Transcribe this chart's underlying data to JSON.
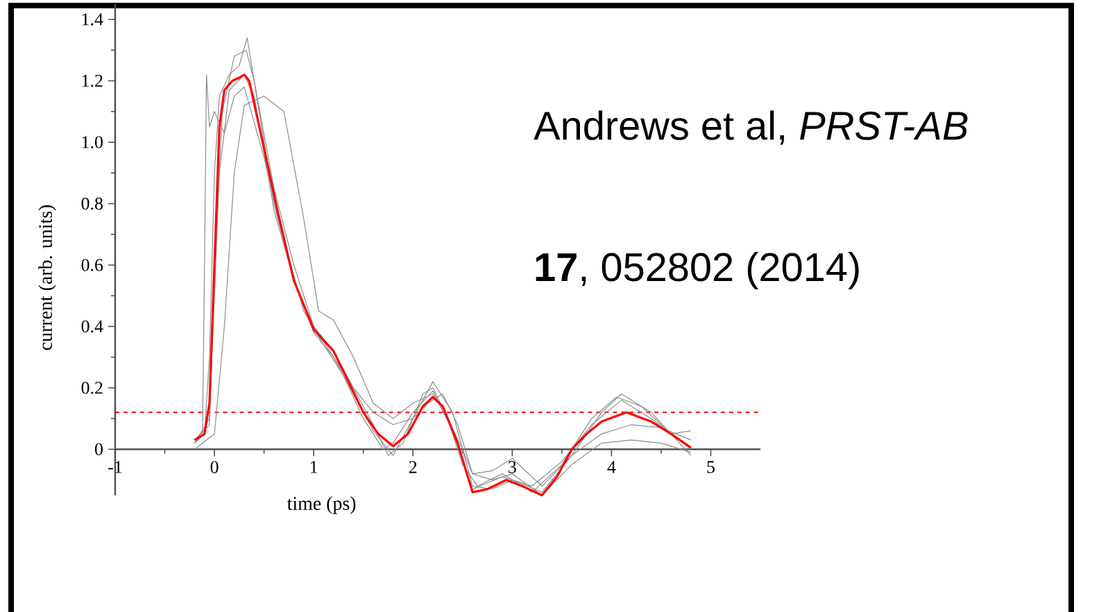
{
  "chart_data": {
    "type": "line",
    "xlabel": "time (ps)",
    "ylabel": "current (arb. units)",
    "annotations": [
      "Andrews et al, *PRST-AB*",
      "**17**, 052802 (2014)"
    ],
    "xlim": [
      -1,
      5.5
    ],
    "ylim": [
      -0.15,
      1.45
    ],
    "xticks": [
      -1,
      0,
      1,
      2,
      3,
      4,
      5
    ],
    "yticks": [
      0,
      0.2,
      0.4,
      0.6,
      0.8,
      {
        "value": 1,
        "label": "1.0"
      },
      1.2,
      1.4
    ],
    "ref_lines": [
      {
        "axis": "y",
        "value": 0.12,
        "color": "#ff0000",
        "line_style": "dashed"
      }
    ],
    "series": [
      {
        "color": "#8c8c8c",
        "x": [
          -0.2,
          0.0,
          0.1,
          0.2,
          0.3,
          0.5,
          0.7,
          0.9,
          1.05,
          1.2,
          1.4,
          1.6,
          1.8,
          2.0,
          2.2,
          2.35,
          2.5,
          2.6,
          2.8,
          3.0,
          3.3,
          3.6,
          3.9,
          4.2,
          4.5,
          4.8
        ],
        "values": [
          0.0,
          0.05,
          0.4,
          0.9,
          1.12,
          1.15,
          1.1,
          0.75,
          0.45,
          0.42,
          0.3,
          0.15,
          0.1,
          0.15,
          0.18,
          0.1,
          0.0,
          -0.08,
          -0.07,
          -0.03,
          -0.12,
          -0.02,
          0.05,
          0.08,
          0.07,
          0.03
        ]
      },
      {
        "color": "#8c8c8c",
        "x": [
          -0.2,
          -0.1,
          -0.05,
          0.0,
          0.05,
          0.15,
          0.25,
          0.33,
          0.4,
          0.6,
          0.8,
          1.0,
          1.2,
          1.4,
          1.6,
          1.8,
          2.0,
          2.2,
          2.4,
          2.6,
          2.8,
          3.0,
          3.3,
          3.6,
          3.9,
          4.1,
          4.4,
          4.8
        ],
        "values": [
          0.02,
          0.05,
          0.3,
          0.9,
          1.15,
          1.22,
          1.25,
          1.34,
          1.2,
          0.85,
          0.6,
          0.4,
          0.3,
          0.18,
          0.06,
          -0.02,
          0.1,
          0.22,
          0.12,
          -0.12,
          -0.13,
          -0.1,
          -0.14,
          -0.02,
          0.12,
          0.18,
          0.12,
          -0.02
        ]
      },
      {
        "color": "#8c8c8c",
        "x": [
          -0.2,
          -0.12,
          -0.1,
          -0.08,
          -0.05,
          0.0,
          0.1,
          0.2,
          0.3,
          0.5,
          0.7,
          0.9,
          1.1,
          1.3,
          1.5,
          1.7,
          1.8,
          2.0,
          2.2,
          2.4,
          2.6,
          2.9,
          3.2,
          3.5,
          3.8,
          4.1,
          4.4,
          4.8
        ],
        "values": [
          0.02,
          0.05,
          0.6,
          1.22,
          1.05,
          1.1,
          1.03,
          1.15,
          1.18,
          0.95,
          0.68,
          0.45,
          0.34,
          0.24,
          0.1,
          0.0,
          0.02,
          0.12,
          0.19,
          0.06,
          -0.13,
          -0.09,
          -0.12,
          -0.04,
          0.08,
          0.16,
          0.1,
          0.0
        ]
      },
      {
        "color": "#8c8c8c",
        "x": [
          -0.2,
          -0.05,
          0.05,
          0.15,
          0.3,
          0.4,
          0.6,
          0.8,
          1.0,
          1.2,
          1.4,
          1.6,
          1.8,
          2.0,
          2.15,
          2.3,
          2.45,
          2.6,
          2.8,
          3.0,
          3.3,
          3.6,
          3.9,
          4.2,
          4.5,
          4.8
        ],
        "values": [
          0.02,
          0.1,
          0.9,
          1.17,
          1.22,
          1.15,
          0.78,
          0.55,
          0.38,
          0.3,
          0.2,
          0.12,
          0.08,
          0.1,
          0.15,
          0.18,
          0.08,
          -0.08,
          -0.1,
          -0.08,
          -0.15,
          -0.05,
          0.02,
          0.03,
          0.02,
          -0.01
        ]
      },
      {
        "color": "#8c8c8c",
        "x": [
          -0.2,
          -0.05,
          0.0,
          0.08,
          0.2,
          0.32,
          0.4,
          0.6,
          0.8,
          1.0,
          1.2,
          1.4,
          1.6,
          1.75,
          1.9,
          2.1,
          2.2,
          2.35,
          2.5,
          2.65,
          2.9,
          3.2,
          3.5,
          3.8,
          4.05,
          4.3,
          4.6,
          4.8
        ],
        "values": [
          0.03,
          0.08,
          0.6,
          1.1,
          1.28,
          1.3,
          1.2,
          0.8,
          0.55,
          0.4,
          0.32,
          0.2,
          0.08,
          -0.02,
          0.02,
          0.18,
          0.2,
          0.1,
          -0.05,
          -0.12,
          -0.08,
          -0.14,
          -0.05,
          0.1,
          0.17,
          0.14,
          0.05,
          0.06
        ]
      },
      {
        "color": "#ff0000",
        "x": [
          -0.2,
          -0.1,
          -0.05,
          0.0,
          0.05,
          0.1,
          0.18,
          0.25,
          0.3,
          0.35,
          0.5,
          0.64,
          0.8,
          1.0,
          1.2,
          1.35,
          1.5,
          1.65,
          1.8,
          1.95,
          2.1,
          2.2,
          2.3,
          2.45,
          2.6,
          2.75,
          2.94,
          3.1,
          3.3,
          3.45,
          3.6,
          3.75,
          3.9,
          4.15,
          4.4,
          4.6,
          4.8
        ],
        "values": [
          0.03,
          0.05,
          0.15,
          0.6,
          1.05,
          1.17,
          1.2,
          1.21,
          1.22,
          1.2,
          0.98,
          0.77,
          0.55,
          0.39,
          0.32,
          0.22,
          0.12,
          0.05,
          0.01,
          0.05,
          0.14,
          0.17,
          0.14,
          0.02,
          -0.14,
          -0.13,
          -0.1,
          -0.12,
          -0.15,
          -0.09,
          0.0,
          0.05,
          0.09,
          0.12,
          0.09,
          0.05,
          0.005
        ]
      }
    ]
  }
}
